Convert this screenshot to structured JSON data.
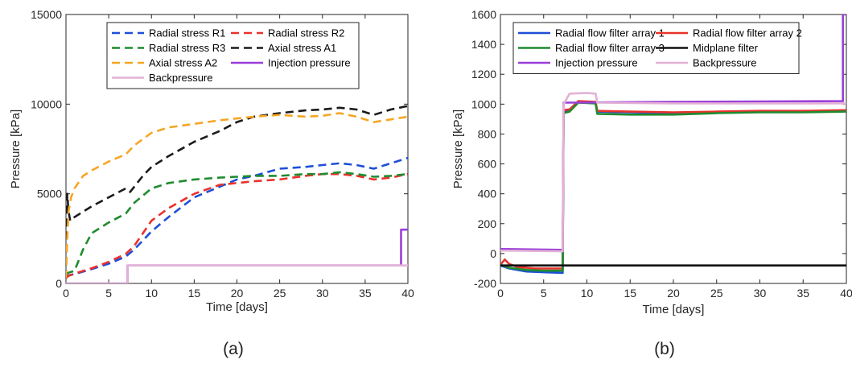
{
  "chart_data": [
    {
      "type": "line",
      "panel_label": "(a)",
      "xlabel": "Time [days]",
      "ylabel": "Pressure [kPa]",
      "xlim": [
        0,
        40
      ],
      "ylim": [
        0,
        15000
      ],
      "xticks": [
        0,
        5,
        10,
        15,
        20,
        25,
        30,
        35,
        40
      ],
      "yticks": [
        0,
        5000,
        10000,
        15000
      ],
      "grid": false,
      "legend_position": "top",
      "legend_columns": 2,
      "series": [
        {
          "name": "Radial stress R1",
          "color": "#1f4fd6",
          "style": "dashed",
          "points": [
            [
              0,
              350
            ],
            [
              0.3,
              450
            ],
            [
              1,
              520
            ],
            [
              3,
              800
            ],
            [
              5,
              1100
            ],
            [
              7,
              1500
            ],
            [
              8,
              1900
            ],
            [
              10,
              2900
            ],
            [
              12,
              3700
            ],
            [
              15,
              4800
            ],
            [
              18,
              5400
            ],
            [
              20,
              5800
            ],
            [
              22,
              6000
            ],
            [
              25,
              6400
            ],
            [
              28,
              6500
            ],
            [
              30,
              6600
            ],
            [
              32,
              6700
            ],
            [
              34,
              6600
            ],
            [
              36,
              6400
            ],
            [
              38,
              6700
            ],
            [
              40,
              7000
            ]
          ]
        },
        {
          "name": "Radial stress R2",
          "color": "#e8322c",
          "style": "dashed",
          "points": [
            [
              0,
              300
            ],
            [
              0.3,
              420
            ],
            [
              1,
              550
            ],
            [
              3,
              850
            ],
            [
              5,
              1200
            ],
            [
              7,
              1650
            ],
            [
              8,
              2100
            ],
            [
              10,
              3500
            ],
            [
              12,
              4200
            ],
            [
              15,
              5000
            ],
            [
              18,
              5500
            ],
            [
              20,
              5600
            ],
            [
              22,
              5700
            ],
            [
              25,
              5800
            ],
            [
              28,
              6000
            ],
            [
              30,
              6100
            ],
            [
              32,
              6100
            ],
            [
              34,
              6000
            ],
            [
              36,
              5800
            ],
            [
              38,
              5900
            ],
            [
              40,
              6100
            ]
          ]
        },
        {
          "name": "Radial stress R3",
          "color": "#1f8b2f",
          "style": "dashed",
          "points": [
            [
              0,
              500
            ],
            [
              0.3,
              600
            ],
            [
              1,
              700
            ],
            [
              2,
              1900
            ],
            [
              3,
              2800
            ],
            [
              5,
              3400
            ],
            [
              7,
              3900
            ],
            [
              8,
              4500
            ],
            [
              10,
              5300
            ],
            [
              12,
              5600
            ],
            [
              15,
              5800
            ],
            [
              18,
              5900
            ],
            [
              20,
              5950
            ],
            [
              22,
              6000
            ],
            [
              25,
              6000
            ],
            [
              28,
              6100
            ],
            [
              30,
              6100
            ],
            [
              32,
              6200
            ],
            [
              34,
              6100
            ],
            [
              36,
              5950
            ],
            [
              38,
              6000
            ],
            [
              40,
              6100
            ]
          ]
        },
        {
          "name": "Axial stress A1",
          "color": "#1b1b1b",
          "style": "dashed",
          "points": [
            [
              0,
              300
            ],
            [
              0.15,
              5000
            ],
            [
              0.3,
              4000
            ],
            [
              0.5,
              3500
            ],
            [
              1,
              3700
            ],
            [
              3,
              4300
            ],
            [
              5,
              4800
            ],
            [
              7,
              5300
            ],
            [
              7.5,
              5100
            ],
            [
              9,
              6000
            ],
            [
              10,
              6500
            ],
            [
              12,
              7100
            ],
            [
              15,
              7900
            ],
            [
              18,
              8500
            ],
            [
              20,
              9000
            ],
            [
              22,
              9300
            ],
            [
              25,
              9500
            ],
            [
              28,
              9650
            ],
            [
              30,
              9700
            ],
            [
              32,
              9800
            ],
            [
              34,
              9700
            ],
            [
              36,
              9400
            ],
            [
              38,
              9700
            ],
            [
              40,
              9900
            ]
          ]
        },
        {
          "name": "Axial stress A2",
          "color": "#f5a623",
          "style": "dashed",
          "points": [
            [
              0,
              300
            ],
            [
              0.15,
              2500
            ],
            [
              0.3,
              4000
            ],
            [
              0.6,
              4800
            ],
            [
              1,
              5300
            ],
            [
              2,
              6000
            ],
            [
              3,
              6300
            ],
            [
              5,
              6800
            ],
            [
              7,
              7200
            ],
            [
              8,
              7700
            ],
            [
              10,
              8400
            ],
            [
              12,
              8700
            ],
            [
              15,
              8900
            ],
            [
              18,
              9100
            ],
            [
              20,
              9200
            ],
            [
              22,
              9300
            ],
            [
              25,
              9400
            ],
            [
              28,
              9300
            ],
            [
              30,
              9350
            ],
            [
              32,
              9500
            ],
            [
              34,
              9300
            ],
            [
              36,
              9000
            ],
            [
              38,
              9150
            ],
            [
              40,
              9300
            ]
          ]
        },
        {
          "name": "Injection pressure",
          "color": "#9b3fd9",
          "style": "solid",
          "points": [
            [
              0,
              0
            ],
            [
              7.2,
              0
            ],
            [
              7.2,
              1000
            ],
            [
              39.2,
              1000
            ],
            [
              39.2,
              3000
            ],
            [
              40,
              3000
            ]
          ]
        },
        {
          "name": "Backpressure",
          "color": "#e3b2d6",
          "style": "solid",
          "points": [
            [
              0,
              0
            ],
            [
              7.2,
              0
            ],
            [
              7.2,
              1000
            ],
            [
              40,
              1000
            ]
          ]
        }
      ]
    },
    {
      "type": "line",
      "panel_label": "(b)",
      "xlabel": "Time [days]",
      "ylabel": "Pressure [kPa]",
      "xlim": [
        0,
        40
      ],
      "ylim": [
        -200,
        1600
      ],
      "xticks": [
        0,
        5,
        10,
        15,
        20,
        25,
        30,
        35,
        40
      ],
      "yticks": [
        -200,
        0,
        200,
        400,
        600,
        800,
        1000,
        1200,
        1400,
        1600
      ],
      "grid": false,
      "legend_position": "top",
      "legend_columns": 2,
      "series": [
        {
          "name": "Radial flow filter array 1",
          "color": "#1f4fd6",
          "style": "solid",
          "points": [
            [
              0,
              -80
            ],
            [
              1,
              -100
            ],
            [
              3,
              -120
            ],
            [
              5,
              -125
            ],
            [
              7.2,
              -130
            ],
            [
              7.3,
              950
            ],
            [
              8,
              960
            ],
            [
              9,
              1015
            ],
            [
              11,
              1010
            ],
            [
              11.2,
              950
            ],
            [
              15,
              945
            ],
            [
              20,
              940
            ],
            [
              25,
              945
            ],
            [
              30,
              950
            ],
            [
              35,
              950
            ],
            [
              40,
              955
            ]
          ]
        },
        {
          "name": "Radial flow filter array 2",
          "color": "#e8322c",
          "style": "solid",
          "points": [
            [
              0,
              -75
            ],
            [
              0.5,
              -40
            ],
            [
              1,
              -70
            ],
            [
              2,
              -90
            ],
            [
              4,
              -100
            ],
            [
              7.2,
              -100
            ],
            [
              7.3,
              960
            ],
            [
              8,
              965
            ],
            [
              9,
              1020
            ],
            [
              11,
              1015
            ],
            [
              11.2,
              955
            ],
            [
              15,
              950
            ],
            [
              20,
              945
            ],
            [
              25,
              950
            ],
            [
              30,
              955
            ],
            [
              35,
              955
            ],
            [
              40,
              960
            ]
          ]
        },
        {
          "name": "Radial flow filter array 3",
          "color": "#1f8b2f",
          "style": "solid",
          "points": [
            [
              0,
              -75
            ],
            [
              1,
              -95
            ],
            [
              3,
              -110
            ],
            [
              5,
              -115
            ],
            [
              7.2,
              -115
            ],
            [
              7.3,
              940
            ],
            [
              8,
              950
            ],
            [
              9,
              1010
            ],
            [
              11,
              1005
            ],
            [
              11.2,
              935
            ],
            [
              15,
              930
            ],
            [
              20,
              930
            ],
            [
              25,
              940
            ],
            [
              30,
              945
            ],
            [
              35,
              945
            ],
            [
              40,
              950
            ]
          ]
        },
        {
          "name": "Midplane filter",
          "color": "#111111",
          "style": "solid",
          "points": [
            [
              0,
              -80
            ],
            [
              10,
              -80
            ],
            [
              20,
              -80
            ],
            [
              30,
              -80
            ],
            [
              40,
              -80
            ]
          ]
        },
        {
          "name": "Injection pressure",
          "color": "#9b3fd9",
          "style": "solid",
          "points": [
            [
              0,
              30
            ],
            [
              7.2,
              25
            ],
            [
              7.3,
              1010
            ],
            [
              20,
              1015
            ],
            [
              30,
              1018
            ],
            [
              39.6,
              1020
            ],
            [
              39.6,
              1600
            ],
            [
              40,
              1600
            ]
          ]
        },
        {
          "name": "Backpressure",
          "color": "#e3b2d6",
          "style": "solid",
          "points": [
            [
              0,
              20
            ],
            [
              7.2,
              15
            ],
            [
              7.3,
              1000
            ],
            [
              8,
              1070
            ],
            [
              10,
              1075
            ],
            [
              11,
              1070
            ],
            [
              11.2,
              1010
            ],
            [
              20,
              1005
            ],
            [
              30,
              1005
            ],
            [
              40,
              1005
            ]
          ]
        }
      ]
    }
  ]
}
